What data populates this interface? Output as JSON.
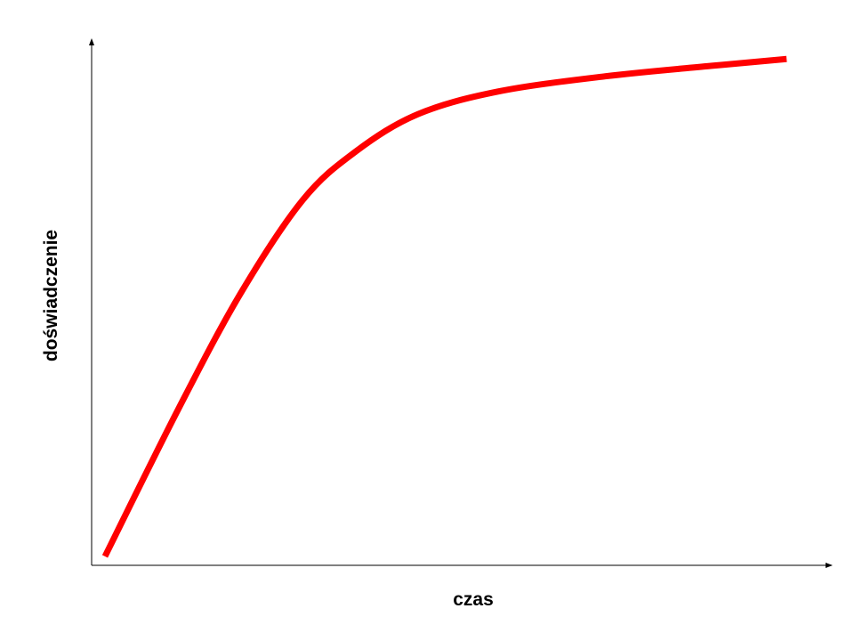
{
  "chart_data": {
    "type": "line",
    "x_label": "czas",
    "y_label": "doświadczenie",
    "x": [
      1.8,
      11.7,
      20.1,
      28.5,
      35.7,
      44.1,
      54.9,
      69.4,
      83.8,
      93.9
    ],
    "series": [
      {
        "color": "#ff0000",
        "values": [
          1.7,
          29.7,
          51.7,
          69.5,
          78.8,
          85.9,
          90.2,
          93.1,
          95.1,
          96.4
        ]
      }
    ],
    "xlim": [
      0,
      100
    ],
    "ylim": [
      0,
      100
    ]
  }
}
